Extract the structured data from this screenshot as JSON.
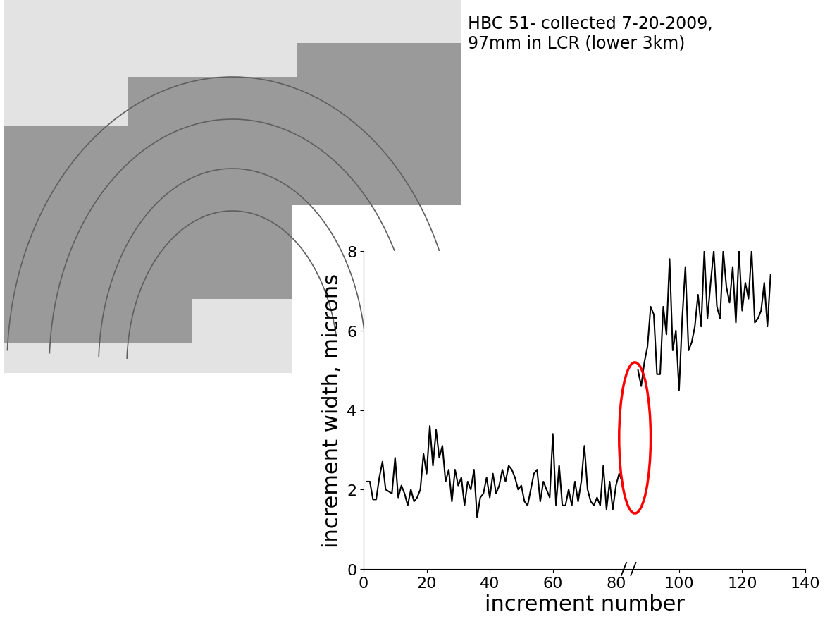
{
  "chart_data": {
    "type": "line",
    "annotation": "HBC 51- collected 7-20-2009,\n97mm in LCR (lower 3km)",
    "xlabel": "increment number",
    "ylabel": "increment width, microns",
    "color": "#000000",
    "x": [
      1,
      2,
      3,
      4,
      5,
      6,
      7,
      8,
      9,
      10,
      11,
      12,
      13,
      14,
      15,
      16,
      17,
      18,
      19,
      20,
      21,
      22,
      23,
      24,
      25,
      26,
      27,
      28,
      29,
      30,
      31,
      32,
      33,
      34,
      35,
      36,
      37,
      38,
      39,
      40,
      41,
      42,
      43,
      44,
      45,
      46,
      47,
      48,
      49,
      50,
      51,
      52,
      53,
      54,
      55,
      56,
      57,
      58,
      59,
      60,
      61,
      62,
      63,
      64,
      65,
      66,
      67,
      68,
      69,
      70,
      71,
      72,
      73,
      74,
      75,
      76,
      77,
      78,
      79,
      80,
      81,
      82,
      84,
      87,
      88,
      89,
      90,
      91,
      92,
      93,
      94,
      95,
      96,
      97,
      98,
      99,
      100,
      101,
      102,
      103,
      104,
      105,
      106,
      107,
      108,
      109,
      110,
      111,
      112,
      113,
      114,
      115,
      116,
      117,
      118,
      119,
      120,
      121,
      122,
      123,
      124,
      125,
      126,
      127,
      128,
      129
    ],
    "values": [
      2.2,
      2.2,
      1.75,
      1.75,
      2.3,
      2.7,
      2.0,
      1.95,
      1.9,
      2.8,
      1.8,
      2.1,
      1.9,
      1.6,
      2.0,
      1.7,
      1.8,
      2.0,
      2.9,
      2.4,
      3.6,
      2.6,
      3.5,
      2.8,
      3.1,
      2.2,
      2.5,
      1.7,
      2.5,
      2.1,
      2.3,
      1.6,
      2.2,
      2.0,
      2.5,
      1.3,
      1.8,
      1.9,
      2.3,
      1.8,
      2.4,
      1.9,
      2.1,
      2.5,
      2.2,
      2.6,
      2.5,
      2.3,
      2.0,
      2.1,
      1.7,
      1.6,
      2.0,
      2.4,
      2.5,
      1.7,
      2.2,
      2.0,
      1.8,
      3.4,
      1.6,
      2.6,
      1.6,
      1.6,
      2.0,
      1.6,
      2.2,
      1.7,
      2.2,
      3.1,
      2.0,
      1.7,
      1.6,
      1.8,
      1.6,
      2.6,
      1.5,
      2.2,
      1.5,
      2.1,
      2.4,
      2.2,
      null,
      5.0,
      4.6,
      5.2,
      5.6,
      6.6,
      6.4,
      4.9,
      4.9,
      6.6,
      5.9,
      7.8,
      5.5,
      6.0,
      4.5,
      6.3,
      7.6,
      5.5,
      5.7,
      6.1,
      6.9,
      6.1,
      8.0,
      6.3,
      7.2,
      8.0,
      6.6,
      6.3,
      8.0,
      7.1,
      6.7,
      7.6,
      6.2,
      8.0,
      6.5,
      7.2,
      6.8,
      8.0,
      6.2,
      6.3,
      6.5,
      7.2,
      6.1,
      7.4
    ],
    "xlim": [
      0,
      140
    ],
    "ylim": [
      0,
      8
    ],
    "xticks": [
      0,
      20,
      40,
      60,
      80,
      100,
      120,
      140
    ],
    "yticks": [
      0,
      2,
      4,
      6,
      8
    ]
  }
}
